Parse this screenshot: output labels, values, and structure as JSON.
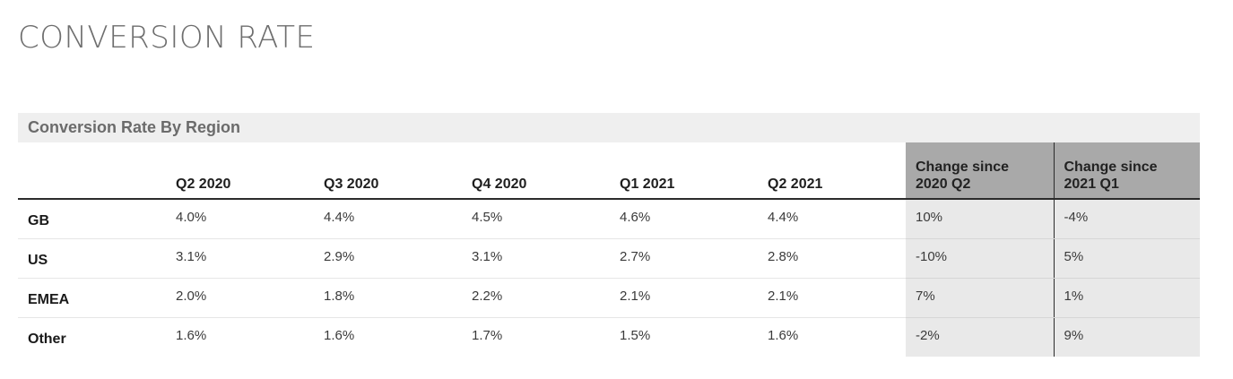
{
  "page": {
    "title": "CONVERSION RATE"
  },
  "table": {
    "title": "Conversion Rate By Region",
    "columns": [
      "",
      "Q2 2020",
      "Q3 2020",
      "Q4 2020",
      "Q1 2021",
      "Q2 2021",
      "Change since 2020 Q2",
      "Change since 2021 Q1"
    ],
    "column_lines": {
      "change_1": [
        "Change since",
        "2020 Q2"
      ],
      "change_2": [
        "Change since",
        "2021 Q1"
      ]
    },
    "rows": [
      [
        "GB",
        "4.0%",
        "4.4%",
        "4.5%",
        "4.6%",
        "4.4%",
        "10%",
        "-4%"
      ],
      [
        "US",
        "3.1%",
        "2.9%",
        "3.1%",
        "2.7%",
        "2.8%",
        "-10%",
        "5%"
      ],
      [
        "EMEA",
        "2.0%",
        "1.8%",
        "2.2%",
        "2.1%",
        "2.1%",
        "7%",
        "1%"
      ],
      [
        "Other",
        "1.6%",
        "1.6%",
        "1.7%",
        "1.5%",
        "1.6%",
        "-2%",
        "9%"
      ]
    ],
    "colors": {
      "header_bar": "#efefef",
      "change_header": "#a9a9a9",
      "change_cell": "#e9e9e9",
      "title_text": "#6e6e6e"
    }
  }
}
